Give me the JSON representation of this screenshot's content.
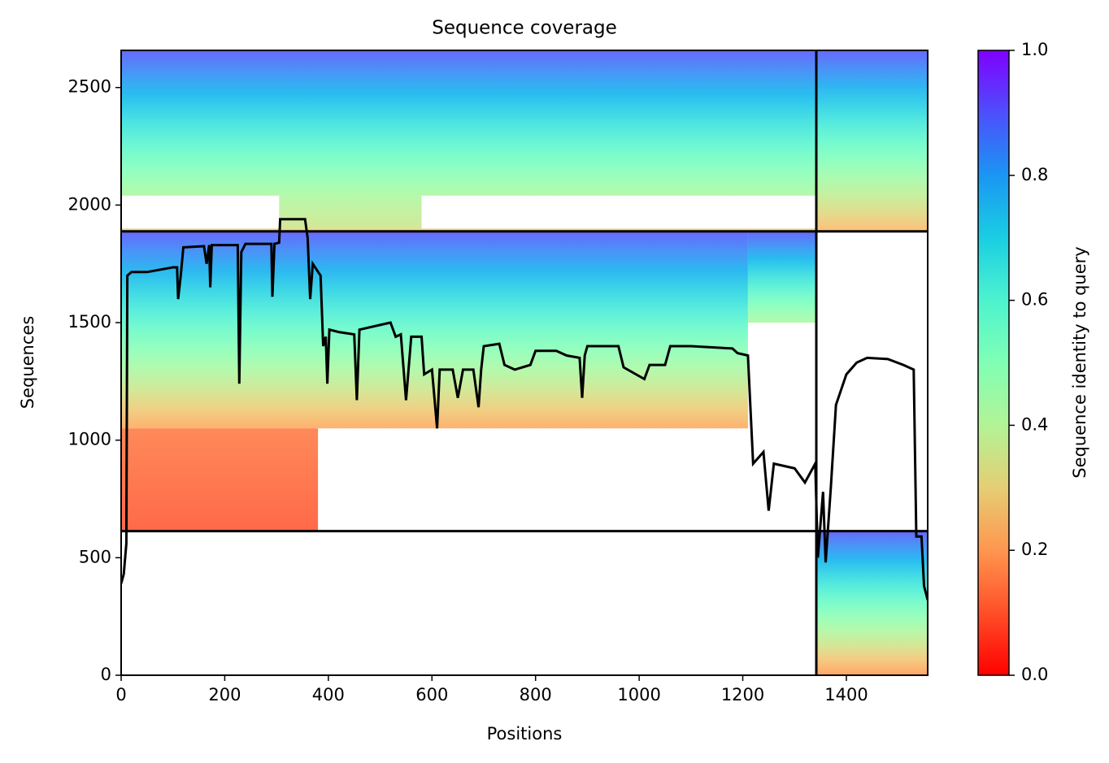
{
  "chart_data": {
    "type": "heatmap",
    "title": "Sequence coverage",
    "x_label": "Positions",
    "y_label": "Sequences",
    "xlim": [
      0,
      1557
    ],
    "ylim": [
      0,
      2658
    ],
    "xticks": [
      0,
      200,
      400,
      600,
      800,
      1000,
      1200,
      1400
    ],
    "yticks": [
      0,
      500,
      1000,
      1500,
      2000,
      2500
    ],
    "colormap": "rainbow_r",
    "colorbar": {
      "label": "Sequence identity to query",
      "lim": [
        0,
        1
      ],
      "ticks": [
        {
          "value": 0,
          "label": "0.0"
        },
        0.2,
        0.4,
        0.6,
        0.8,
        {
          "value": 1,
          "label": "1.0"
        }
      ]
    },
    "cells": [
      {
        "x": [
          0,
          1342
        ],
        "y": [
          2040,
          2658
        ],
        "identity": [
          0.42,
          0.9
        ]
      },
      {
        "x": [
          305,
          580
        ],
        "y": [
          1900,
          2040
        ],
        "identity": [
          0.35,
          0.42
        ]
      },
      {
        "x": [
          0,
          1342
        ],
        "y": [
          1888,
          1900
        ],
        "identity": [
          0.25,
          0.3
        ]
      },
      {
        "x": [
          0,
          1210
        ],
        "y": [
          1050,
          1888
        ],
        "identity": [
          0.22,
          0.9
        ]
      },
      {
        "x": [
          1210,
          1342
        ],
        "y": [
          1500,
          1888
        ],
        "identity": [
          0.42,
          0.9
        ]
      },
      {
        "x": [
          0,
          380
        ],
        "y": [
          613,
          1050
        ],
        "identity": [
          0.1,
          0.15
        ]
      },
      {
        "x": [
          1342,
          1557
        ],
        "y": [
          1888,
          2658
        ],
        "identity": [
          0.25,
          0.9
        ]
      },
      {
        "x": [
          1342,
          1557
        ],
        "y": [
          0,
          613
        ],
        "identity": [
          0.2,
          0.9
        ]
      }
    ],
    "dividers": {
      "x": [
        1342
      ],
      "y": [
        1888,
        613
      ]
    },
    "line": {
      "color": "#000000",
      "x": [
        0,
        5,
        10,
        12,
        20,
        50,
        100,
        108,
        110,
        115,
        120,
        160,
        165,
        170,
        172,
        175,
        225,
        228,
        232,
        240,
        290,
        292,
        296,
        305,
        307,
        355,
        360,
        365,
        370,
        385,
        390,
        395,
        398,
        402,
        420,
        450,
        455,
        460,
        500,
        520,
        530,
        540,
        550,
        560,
        580,
        585,
        600,
        610,
        615,
        640,
        650,
        660,
        680,
        690,
        695,
        700,
        730,
        740,
        760,
        790,
        800,
        840,
        860,
        885,
        890,
        895,
        900,
        960,
        970,
        1010,
        1020,
        1050,
        1060,
        1100,
        1180,
        1190,
        1210,
        1220,
        1240,
        1250,
        1260,
        1300,
        1320,
        1340,
        1345,
        1355,
        1360,
        1370,
        1380,
        1400,
        1420,
        1440,
        1480,
        1510,
        1530,
        1535,
        1545,
        1550,
        1557
      ],
      "y": [
        390,
        430,
        560,
        1700,
        1715,
        1715,
        1735,
        1735,
        1600,
        1700,
        1820,
        1825,
        1750,
        1830,
        1650,
        1830,
        1830,
        1240,
        1800,
        1835,
        1835,
        1610,
        1835,
        1840,
        1940,
        1940,
        1860,
        1600,
        1750,
        1700,
        1400,
        1440,
        1240,
        1470,
        1460,
        1450,
        1170,
        1470,
        1490,
        1500,
        1440,
        1450,
        1170,
        1440,
        1440,
        1280,
        1300,
        1050,
        1300,
        1300,
        1180,
        1300,
        1300,
        1140,
        1300,
        1400,
        1410,
        1320,
        1300,
        1320,
        1380,
        1380,
        1360,
        1350,
        1180,
        1360,
        1400,
        1400,
        1310,
        1260,
        1320,
        1320,
        1400,
        1400,
        1390,
        1370,
        1360,
        900,
        950,
        700,
        900,
        880,
        820,
        900,
        500,
        780,
        480,
        800,
        1150,
        1280,
        1330,
        1350,
        1345,
        1320,
        1300,
        590,
        590,
        380,
        320
      ]
    }
  }
}
